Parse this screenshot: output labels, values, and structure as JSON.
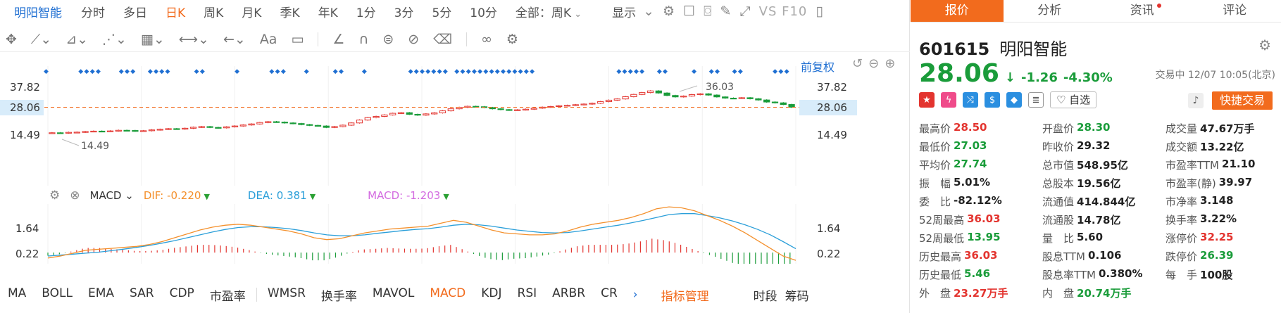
{
  "toolbar": {
    "stock_name": "明阳智能",
    "periods": [
      "分时",
      "多日",
      "日K",
      "周K",
      "月K",
      "季K",
      "年K",
      "1分",
      "3分",
      "5分",
      "10分",
      "全部：周K"
    ],
    "active_period": "日K",
    "display_label": "显示",
    "vsf10_label": "VS F10"
  },
  "chart": {
    "restore_label": "前复权",
    "y_ticks": [
      "37.82",
      "28.06",
      "14.49"
    ],
    "current_price_tag": "28.06",
    "high_annotation": "36.03",
    "low_annotation": "14.49",
    "macd_ticks": [
      "1.64",
      "0.22"
    ]
  },
  "chart_data": {
    "type": "candlestick",
    "ylim": [
      14.49,
      37.82
    ],
    "current_price": 28.06,
    "close_series": [
      15.6,
      15.5,
      15.8,
      15.9,
      16.2,
      16.4,
      16.2,
      16.5,
      16.8,
      16.7,
      16.4,
      16.6,
      17.0,
      17.3,
      17.6,
      17.4,
      17.8,
      18.3,
      18.6,
      18.2,
      18.0,
      18.5,
      18.9,
      19.4,
      19.9,
      20.6,
      21.0,
      20.8,
      20.4,
      20.1,
      19.6,
      19.2,
      18.9,
      18.2,
      18.6,
      19.3,
      20.4,
      21.8,
      23.0,
      23.6,
      24.3,
      25.1,
      25.4,
      24.6,
      24.2,
      24.8,
      25.3,
      26.3,
      27.3,
      28.0,
      28.5,
      28.3,
      27.9,
      27.3,
      26.9,
      26.6,
      26.8,
      27.1,
      27.6,
      28.1,
      28.4,
      28.8,
      29.0,
      29.3,
      29.6,
      30.0,
      30.8,
      31.5,
      32.1,
      33.2,
      34.3,
      35.2,
      36.03,
      35.0,
      33.8,
      33.1,
      33.5,
      34.2,
      34.6,
      34.0,
      33.1,
      32.5,
      32.4,
      32.7,
      32.2,
      31.6,
      30.6,
      30.2,
      29.4,
      28.06
    ],
    "macd": {
      "dif_label": "DIF: -0.220",
      "dea_label": "DEA: 0.381",
      "macd_label": "MACD: -1.203",
      "dif": [
        -0.1,
        0.0,
        0.15,
        0.3,
        0.35,
        0.4,
        0.45,
        0.5,
        0.6,
        0.75,
        0.95,
        1.15,
        1.35,
        1.5,
        1.6,
        1.65,
        1.6,
        1.5,
        1.4,
        1.3,
        1.15,
        0.95,
        0.85,
        0.9,
        1.05,
        1.2,
        1.3,
        1.4,
        1.45,
        1.5,
        1.55,
        1.7,
        1.85,
        1.75,
        1.55,
        1.35,
        1.2,
        1.15,
        1.1,
        1.1,
        1.15,
        1.3,
        1.5,
        1.65,
        1.75,
        1.85,
        2.0,
        2.2,
        2.45,
        2.55,
        2.5,
        2.35,
        2.1,
        1.85,
        1.55,
        1.2,
        0.8,
        0.4,
        0.0,
        -0.22
      ],
      "dea": [
        0.0,
        0.05,
        0.1,
        0.15,
        0.2,
        0.28,
        0.36,
        0.45,
        0.55,
        0.67,
        0.8,
        0.95,
        1.1,
        1.25,
        1.38,
        1.48,
        1.52,
        1.52,
        1.48,
        1.42,
        1.32,
        1.2,
        1.1,
        1.05,
        1.05,
        1.1,
        1.18,
        1.25,
        1.32,
        1.38,
        1.42,
        1.5,
        1.6,
        1.65,
        1.62,
        1.55,
        1.45,
        1.35,
        1.28,
        1.22,
        1.2,
        1.22,
        1.3,
        1.4,
        1.5,
        1.6,
        1.72,
        1.85,
        2.0,
        2.15,
        2.2,
        2.2,
        2.1,
        1.98,
        1.82,
        1.62,
        1.38,
        1.1,
        0.75,
        0.38
      ]
    }
  },
  "macd_bar": {
    "name": "MACD"
  },
  "indicators": {
    "left": [
      "MA",
      "BOLL",
      "EMA",
      "SAR",
      "CDP",
      "市盈率"
    ],
    "right": [
      "WMSR",
      "换手率",
      "MAVOL",
      "MACD",
      "KDJ",
      "RSI",
      "ARBR",
      "CR"
    ],
    "active": "MACD",
    "more": "›",
    "manage": "指标管理",
    "tail": [
      "时段",
      "筹码"
    ]
  },
  "right_panel": {
    "tabs": [
      "报价",
      "分析",
      "资讯",
      "评论"
    ],
    "code": "601615",
    "name": "明阳智能",
    "price": "28.06",
    "arrow": "↓",
    "change": "-1.26",
    "change_pct": "-4.30%",
    "trade_time": "交易中 12/07 10:05(北京)",
    "add_watch": "自选",
    "quick_trade": "快捷交易",
    "stats": [
      [
        {
          "label": "最高价",
          "value": "28.50",
          "c": "up"
        },
        {
          "label": "开盘价",
          "value": "28.30",
          "c": "dn"
        },
        {
          "label": "成交量",
          "value": "47.67万手",
          "c": ""
        }
      ],
      [
        {
          "label": "最低价",
          "value": "27.03",
          "c": "dn"
        },
        {
          "label": "昨收价",
          "value": "29.32",
          "c": ""
        },
        {
          "label": "成交额",
          "value": "13.22亿",
          "c": ""
        }
      ],
      [
        {
          "label": "平均价",
          "value": "27.74",
          "c": "dn"
        },
        {
          "label": "总市值",
          "value": "548.95亿",
          "c": ""
        },
        {
          "label": "市盈率TTM",
          "value": "21.10",
          "c": ""
        }
      ],
      [
        {
          "label": "振　幅",
          "value": "5.01%",
          "c": ""
        },
        {
          "label": "总股本",
          "value": "19.56亿",
          "c": ""
        },
        {
          "label": "市盈率(静)",
          "value": "39.97",
          "c": ""
        }
      ],
      [
        {
          "label": "委　比",
          "value": "-82.12%",
          "c": ""
        },
        {
          "label": "流通值",
          "value": "414.844亿",
          "c": ""
        },
        {
          "label": "市净率",
          "value": "3.148",
          "c": ""
        }
      ],
      [
        {
          "label": "52周最高",
          "value": "36.03",
          "c": "up"
        },
        {
          "label": "流通股",
          "value": "14.78亿",
          "c": ""
        },
        {
          "label": "换手率",
          "value": "3.22%",
          "c": ""
        }
      ],
      [
        {
          "label": "52周最低",
          "value": "13.95",
          "c": "dn"
        },
        {
          "label": "量　比",
          "value": "5.60",
          "c": ""
        },
        {
          "label": "涨停价",
          "value": "32.25",
          "c": "up"
        }
      ],
      [
        {
          "label": "历史最高",
          "value": "36.03",
          "c": "up"
        },
        {
          "label": "股息TTM",
          "value": "0.106",
          "c": ""
        },
        {
          "label": "跌停价",
          "value": "26.39",
          "c": "dn"
        }
      ],
      [
        {
          "label": "历史最低",
          "value": "5.46",
          "c": "dn"
        },
        {
          "label": "股息率TTM",
          "value": "0.380%",
          "c": ""
        },
        {
          "label": "每　手",
          "value": "100股",
          "c": ""
        }
      ],
      [
        {
          "label": "外　盘",
          "value": "23.27万手",
          "c": "up"
        },
        {
          "label": "内　盘",
          "value": "20.74万手",
          "c": "dn"
        },
        {
          "label": "",
          "value": "",
          "c": ""
        }
      ]
    ]
  }
}
